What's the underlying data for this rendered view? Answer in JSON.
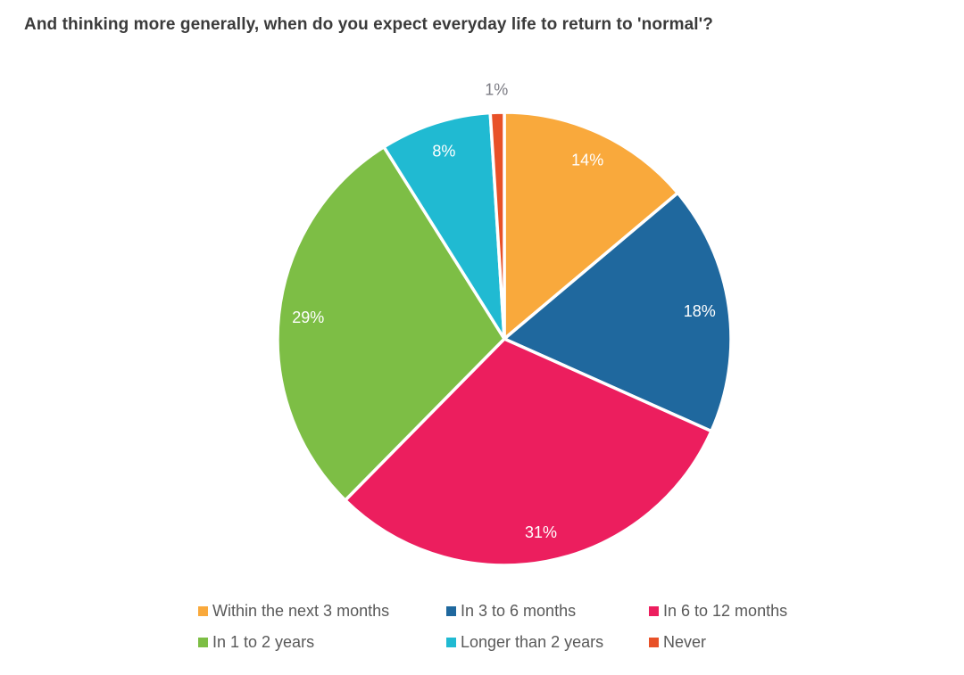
{
  "title": "And thinking more generally, when do you expect everyday life to return to 'normal'?",
  "colors": {
    "background": "#ffffff",
    "title_text": "#3b3b3b",
    "legend_text": "#595959",
    "inside_label_text": "#ffffff",
    "outside_label_text": "#7d7d85",
    "slice_gap": "#ffffff"
  },
  "chart_data": {
    "type": "pie",
    "title": "And thinking more generally, when do you expect everyday life to return to 'normal'?",
    "start_angle_deg": 0,
    "direction": "clockwise",
    "legend_position": "bottom",
    "value_suffix": "%",
    "series": [
      {
        "label": "Within the next 3 months",
        "value": 14,
        "display": "14%",
        "color": "#F9A93C"
      },
      {
        "label": "In 3 to 6 months",
        "value": 18,
        "display": "18%",
        "color": "#1F689E"
      },
      {
        "label": "In 6 to 12 months",
        "value": 31,
        "display": "31%",
        "color": "#EC1E5E"
      },
      {
        "label": "In 1 to 2 years",
        "value": 29,
        "display": "29%",
        "color": "#7DBE45"
      },
      {
        "label": "Longer than 2 years",
        "value": 8,
        "display": "8%",
        "color": "#20BAD2"
      },
      {
        "label": "Never",
        "value": 1,
        "display": "1%",
        "color": "#E85128"
      }
    ]
  }
}
